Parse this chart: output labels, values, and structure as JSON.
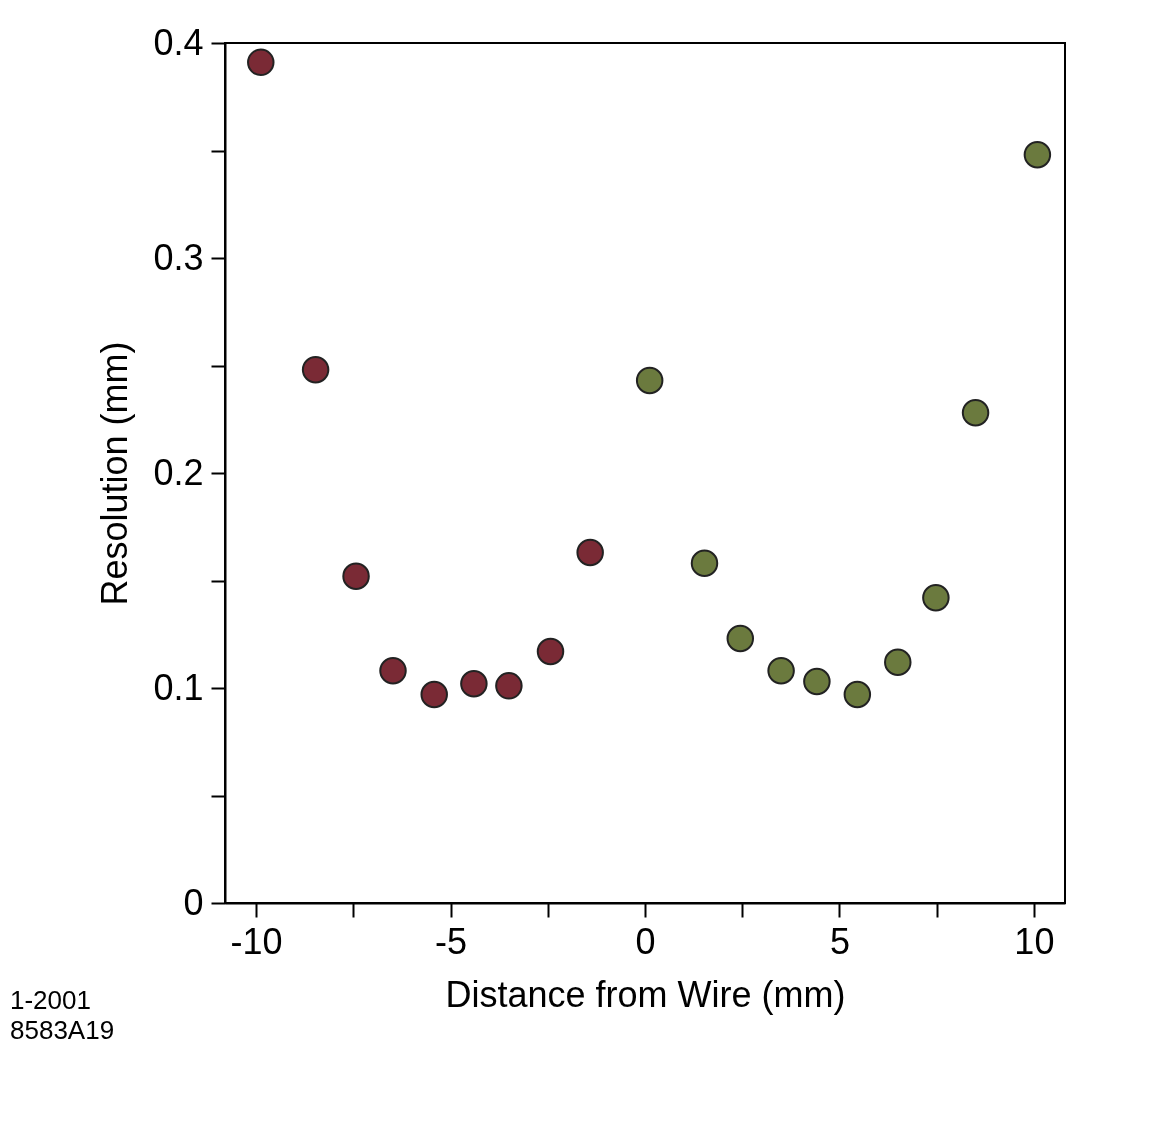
{
  "chart_data": {
    "type": "scatter",
    "xlabel": "Distance from Wire  (mm)",
    "ylabel": "Resolution  (mm)",
    "series": [
      {
        "color": "#7a2a35",
        "x": [
          -9.88,
          -8.47,
          -7.43,
          -6.48,
          -5.42,
          -4.4,
          -3.5,
          -2.43,
          -1.41
        ],
        "values": [
          0.391,
          0.248,
          0.152,
          0.108,
          0.097,
          0.102,
          0.101,
          0.117,
          0.163
        ]
      },
      {
        "color": "#6b7a3e",
        "x": [
          0.12,
          1.53,
          2.45,
          3.5,
          4.42,
          5.46,
          6.5,
          7.48,
          8.5,
          10.09
        ],
        "values": [
          0.243,
          0.158,
          0.123,
          0.108,
          0.103,
          0.097,
          0.112,
          0.142,
          0.228,
          0.348
        ]
      }
    ],
    "xlim": [
      -10.8,
      10.8
    ],
    "xticks": [
      -10,
      {
        "value": -7.5,
        "label": null
      },
      -5,
      {
        "value": -2.5,
        "label": null
      },
      0,
      {
        "value": 2.5,
        "label": null
      },
      5,
      {
        "value": 7.5,
        "label": null
      },
      10
    ],
    "ylim": [
      0,
      0.4
    ],
    "yticks": [
      0,
      {
        "value": 0.05,
        "label": null
      },
      0.1,
      {
        "value": 0.15,
        "label": null
      },
      0.2,
      {
        "value": 0.25,
        "label": null
      },
      0.3,
      {
        "value": 0.35,
        "label": null
      },
      0.4
    ],
    "marker": "circle",
    "grid": false,
    "legend": false,
    "annotations": [
      "1-2001",
      "8583A19"
    ]
  }
}
